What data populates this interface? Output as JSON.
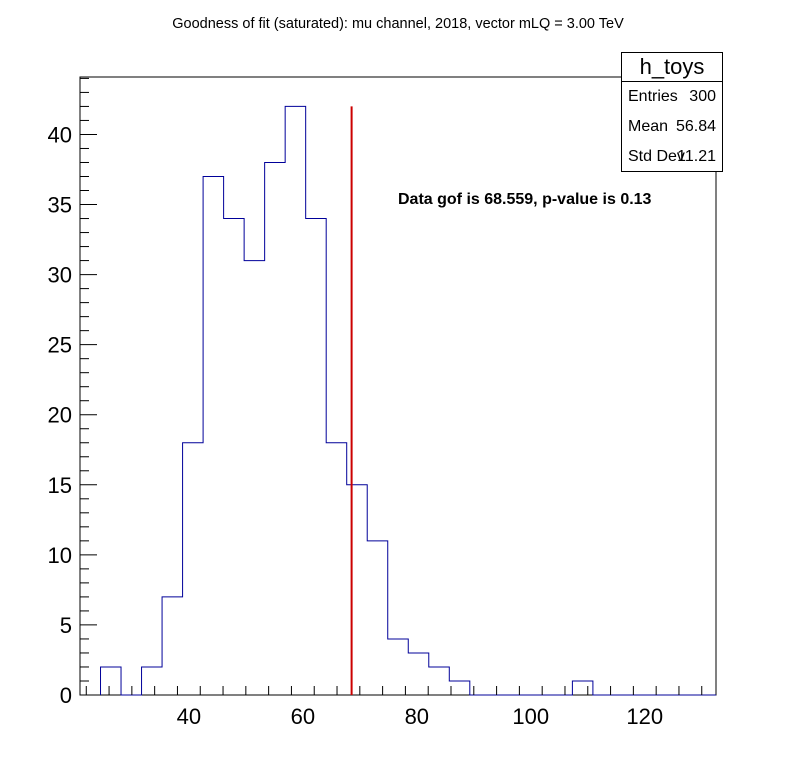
{
  "title": "Goodness of fit (saturated): mu channel, 2018, vector mLQ = 3.00 TeV",
  "stats_box": {
    "name": "h_toys",
    "rows": [
      {
        "label": "Entries",
        "value": "300"
      },
      {
        "label": "Mean",
        "value": "56.84"
      },
      {
        "label": "Std Dev",
        "value": "11.21"
      }
    ]
  },
  "annotation": "Data gof is 68.559, p-value is 0.13",
  "chart_data": {
    "type": "bar",
    "subtype": "histogram",
    "bin_width": 3.6,
    "bins": [
      {
        "x_low": 24.5,
        "count": 2
      },
      {
        "x_low": 28.1,
        "count": 0
      },
      {
        "x_low": 31.7,
        "count": 2
      },
      {
        "x_low": 35.3,
        "count": 7
      },
      {
        "x_low": 38.9,
        "count": 18
      },
      {
        "x_low": 42.5,
        "count": 37
      },
      {
        "x_low": 46.1,
        "count": 34
      },
      {
        "x_low": 49.7,
        "count": 31
      },
      {
        "x_low": 53.3,
        "count": 38
      },
      {
        "x_low": 56.9,
        "count": 42
      },
      {
        "x_low": 60.5,
        "count": 34
      },
      {
        "x_low": 64.1,
        "count": 18
      },
      {
        "x_low": 67.7,
        "count": 15
      },
      {
        "x_low": 71.3,
        "count": 11
      },
      {
        "x_low": 74.9,
        "count": 4
      },
      {
        "x_low": 78.5,
        "count": 3
      },
      {
        "x_low": 82.1,
        "count": 2
      },
      {
        "x_low": 85.7,
        "count": 1
      },
      {
        "x_low": 89.3,
        "count": 0
      },
      {
        "x_low": 92.9,
        "count": 0
      },
      {
        "x_low": 96.5,
        "count": 0
      },
      {
        "x_low": 100.1,
        "count": 0
      },
      {
        "x_low": 103.7,
        "count": 0
      },
      {
        "x_low": 107.3,
        "count": 1
      },
      {
        "x_low": 110.9,
        "count": 0
      },
      {
        "x_low": 114.5,
        "count": 0
      },
      {
        "x_low": 118.1,
        "count": 0
      },
      {
        "x_low": 121.7,
        "count": 0
      },
      {
        "x_low": 125.3,
        "count": 0
      },
      {
        "x_low": 128.9,
        "count": 0
      }
    ],
    "xlim": [
      20.9,
      132.5
    ],
    "ylim": [
      0,
      44.1
    ],
    "x_ticks": [
      40,
      60,
      80,
      100,
      120
    ],
    "y_ticks": [
      0,
      5,
      10,
      15,
      20,
      25,
      30,
      35,
      40
    ],
    "marker_line": {
      "x": 68.559,
      "y_top": 42
    },
    "hist_color": "#000099",
    "marker_color": "#cc0000"
  }
}
